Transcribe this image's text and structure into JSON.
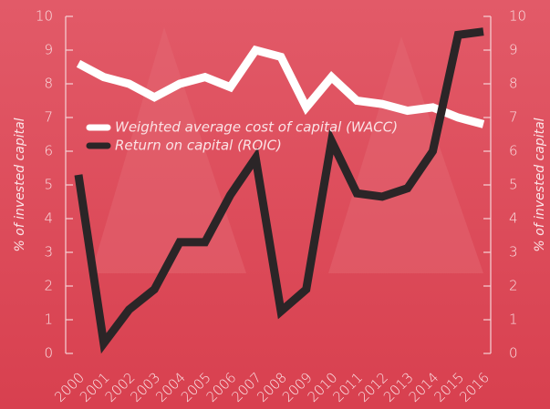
{
  "chart_data": {
    "type": "line",
    "y_label": "% of invested capital",
    "y2_label": "% of invested capital",
    "x": [
      "2000",
      "2001",
      "2002",
      "2003",
      "2004",
      "2005",
      "2006",
      "2007",
      "2008",
      "2009",
      "2010",
      "2011",
      "2012",
      "2013",
      "2014",
      "2015",
      "2016"
    ],
    "series": [
      {
        "name": "Weighted average cost of capital (WACC)",
        "color": "#ffffff",
        "values": [
          8.6,
          8.2,
          8.0,
          7.6,
          8.0,
          8.2,
          7.9,
          9.0,
          8.8,
          7.3,
          8.2,
          7.5,
          7.4,
          7.2,
          7.3,
          7.0,
          6.8
        ]
      },
      {
        "name": "Return on capital (ROIC)",
        "color": "#2b2527",
        "values": [
          5.3,
          0.3,
          1.3,
          1.9,
          3.3,
          3.3,
          4.7,
          5.8,
          1.25,
          1.9,
          6.3,
          4.75,
          4.65,
          4.9,
          6.0,
          9.45,
          9.55
        ]
      }
    ],
    "ylim": [
      0,
      10
    ],
    "yticks": [
      0,
      1,
      2,
      3,
      4,
      5,
      6,
      7,
      8,
      9,
      10
    ],
    "y2lim": [
      0,
      10
    ],
    "y2ticks": [
      0,
      1,
      2,
      3,
      4,
      5,
      6,
      7,
      8,
      9,
      10
    ]
  }
}
